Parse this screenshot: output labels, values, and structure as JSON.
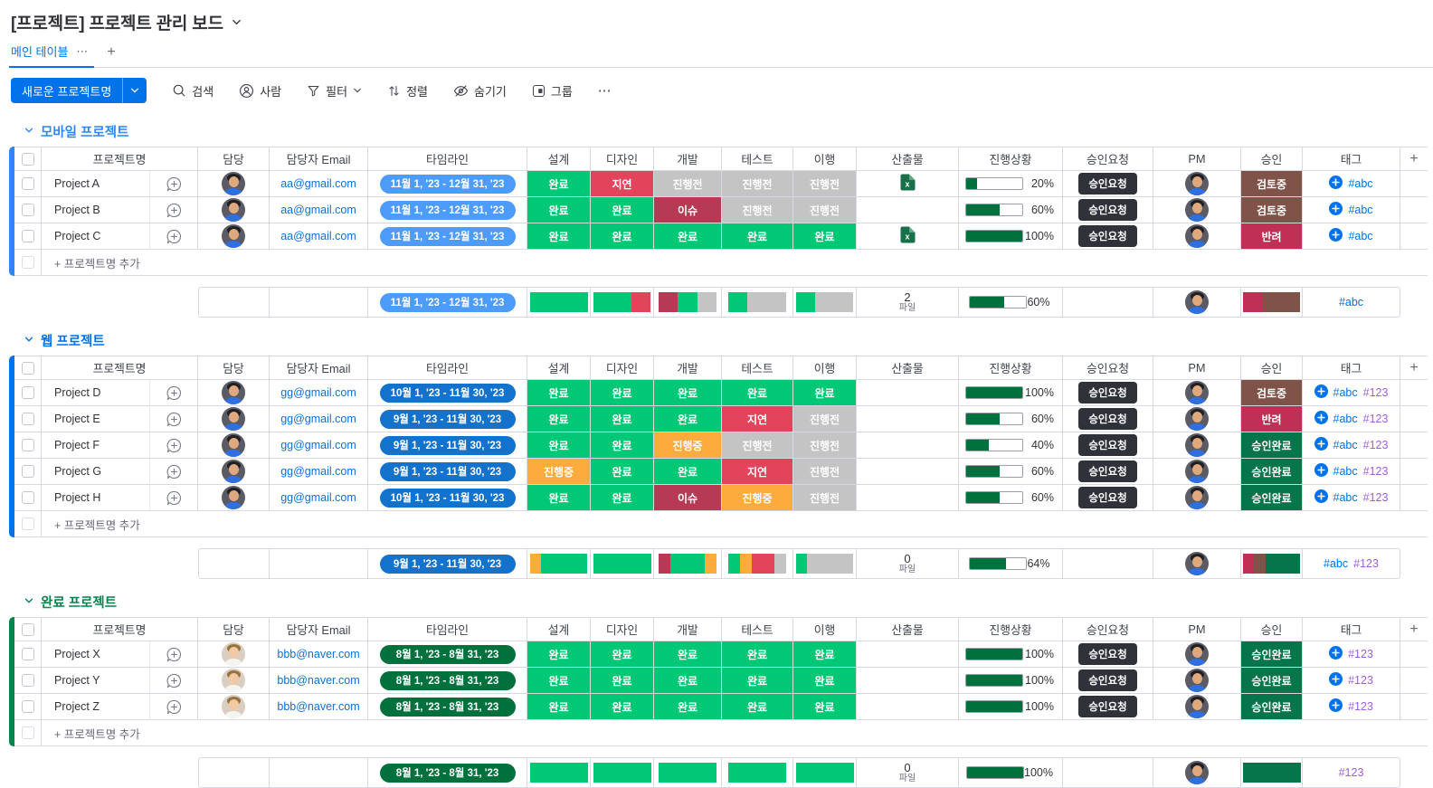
{
  "header": {
    "board_title": "[프로젝트] 프로젝트 관리 보드",
    "tab_label": "메인 테이블",
    "tab_more": "⋯",
    "add_view": "+"
  },
  "toolbar": {
    "new_item_label": "새로운 프로젝트명",
    "search_label": "검색",
    "person_label": "사람",
    "filter_label": "필터",
    "sort_label": "정렬",
    "hide_label": "숨기기",
    "group_label": "그룹",
    "more_label": "⋯"
  },
  "labels": {
    "add_row": "+ 프로젝트명 추가",
    "approval_request": "승인요청",
    "files_unit": "파일",
    "add_column": "+"
  },
  "columns": [
    "프로젝트명",
    "담당",
    "담당자 Email",
    "타임라인",
    "설계",
    "디자인",
    "개발",
    "테스트",
    "이행",
    "산출물",
    "진행상황",
    "승인요청",
    "PM",
    "승인",
    "태그"
  ],
  "status_colors": {
    "완료": "#00c875",
    "지연": "#e2445c",
    "진행전": "#c4c4c4",
    "이슈": "#b63a53",
    "진행중": "#fdab3d",
    "검토중": "#7f5347",
    "반려": "#c02f55",
    "승인완료": "#06764a"
  },
  "tag_colors": {
    "#abc": "#0073ea",
    "#123": "#a25ddc"
  },
  "progress_fill": "#00713c",
  "groups": [
    {
      "name": "모바일 프로젝트",
      "color": "#2f86f6",
      "timeline_color": "#4d9bfa",
      "rows": [
        {
          "name": "Project A",
          "avatar": "a",
          "email": "aa@gmail.com",
          "timeline": "11월 1, '23 - 12월 31, '23",
          "statuses": [
            "완료",
            "지연",
            "진행전",
            "진행전",
            "진행전"
          ],
          "file": true,
          "progress": 20,
          "approval": "검토중",
          "tags": [
            "#abc"
          ]
        },
        {
          "name": "Project B",
          "avatar": "a",
          "email": "aa@gmail.com",
          "timeline": "11월 1, '23 - 12월 31, '23",
          "statuses": [
            "완료",
            "완료",
            "이슈",
            "진행전",
            "진행전"
          ],
          "file": false,
          "progress": 60,
          "approval": "검토중",
          "tags": [
            "#abc"
          ]
        },
        {
          "name": "Project C",
          "avatar": "a",
          "email": "aa@gmail.com",
          "timeline": "11월 1, '23 - 12월 31, '23",
          "statuses": [
            "완료",
            "완료",
            "완료",
            "완료",
            "완료"
          ],
          "file": true,
          "progress": 100,
          "approval": "반려",
          "tags": [
            "#abc"
          ]
        }
      ],
      "summary": {
        "timeline": "11월 1, '23 - 12월 31, '23",
        "bars": [
          [
            [
              "완료",
              100
            ]
          ],
          [
            [
              "완료",
              67
            ],
            [
              "지연",
              33
            ]
          ],
          [
            [
              "이슈",
              33
            ],
            [
              "완료",
              34
            ],
            [
              "진행전",
              33
            ]
          ],
          [
            [
              "완료",
              33
            ],
            [
              "진행전",
              67
            ]
          ],
          [
            [
              "완료",
              33
            ],
            [
              "진행전",
              67
            ]
          ]
        ],
        "files": "2",
        "progress": 60,
        "approval_bar": [
          [
            "반려",
            33
          ],
          [
            "검토중",
            67
          ]
        ],
        "tags": [
          "#abc"
        ]
      }
    },
    {
      "name": "웹 프로젝트",
      "color": "#0073ea",
      "timeline_color": "#1272cc",
      "rows": [
        {
          "name": "Project D",
          "avatar": "a",
          "email": "gg@gmail.com",
          "timeline": "10월 1, '23 - 11월 30, '23",
          "statuses": [
            "완료",
            "완료",
            "완료",
            "완료",
            "완료"
          ],
          "file": false,
          "progress": 100,
          "approval": "검토중",
          "tags": [
            "#abc",
            "#123"
          ]
        },
        {
          "name": "Project E",
          "avatar": "a",
          "email": "gg@gmail.com",
          "timeline": "9월 1, '23 - 11월 30, '23",
          "statuses": [
            "완료",
            "완료",
            "완료",
            "지연",
            "진행전"
          ],
          "file": false,
          "progress": 60,
          "approval": "반려",
          "tags": [
            "#abc",
            "#123"
          ]
        },
        {
          "name": "Project F",
          "avatar": "a",
          "email": "gg@gmail.com",
          "timeline": "9월 1, '23 - 11월 30, '23",
          "statuses": [
            "완료",
            "완료",
            "진행중",
            "진행전",
            "진행전"
          ],
          "file": false,
          "progress": 40,
          "approval": "승인완료",
          "tags": [
            "#abc",
            "#123"
          ]
        },
        {
          "name": "Project G",
          "avatar": "a",
          "email": "gg@gmail.com",
          "timeline": "9월 1, '23 - 11월 30, '23",
          "statuses": [
            "진행중",
            "완료",
            "완료",
            "지연",
            "진행전"
          ],
          "file": false,
          "progress": 60,
          "approval": "승인완료",
          "tags": [
            "#abc",
            "#123"
          ]
        },
        {
          "name": "Project H",
          "avatar": "a",
          "email": "gg@gmail.com",
          "timeline": "10월 1, '23 - 11월 30, '23",
          "statuses": [
            "완료",
            "완료",
            "이슈",
            "진행중",
            "진행전"
          ],
          "file": false,
          "progress": 60,
          "approval": "승인완료",
          "tags": [
            "#abc",
            "#123"
          ]
        }
      ],
      "summary": {
        "timeline": "9월 1, '23 - 11월 30, '23",
        "bars": [
          [
            [
              "진행중",
              20
            ],
            [
              "완료",
              80
            ]
          ],
          [
            [
              "완료",
              100
            ]
          ],
          [
            [
              "이슈",
              20
            ],
            [
              "완료",
              60
            ],
            [
              "진행중",
              20
            ]
          ],
          [
            [
              "완료",
              20
            ],
            [
              "진행중",
              20
            ],
            [
              "지연",
              40
            ],
            [
              "진행전",
              20
            ]
          ],
          [
            [
              "완료",
              20
            ],
            [
              "진행전",
              80
            ]
          ]
        ],
        "files": "0",
        "progress": 64,
        "approval_bar": [
          [
            "반려",
            20
          ],
          [
            "검토중",
            20
          ],
          [
            "승인완료",
            60
          ]
        ],
        "tags": [
          "#abc",
          "#123"
        ]
      }
    },
    {
      "name": "완료 프로젝트",
      "color": "#00854d",
      "timeline_color": "#00713c",
      "rows": [
        {
          "name": "Project X",
          "avatar": "b",
          "email": "bbb@naver.com",
          "timeline": "8월 1, '23 - 8월 31, '23",
          "statuses": [
            "완료",
            "완료",
            "완료",
            "완료",
            "완료"
          ],
          "file": false,
          "progress": 100,
          "approval": "승인완료",
          "tags": [
            "#123"
          ]
        },
        {
          "name": "Project Y",
          "avatar": "b",
          "email": "bbb@naver.com",
          "timeline": "8월 1, '23 - 8월 31, '23",
          "statuses": [
            "완료",
            "완료",
            "완료",
            "완료",
            "완료"
          ],
          "file": false,
          "progress": 100,
          "approval": "승인완료",
          "tags": [
            "#123"
          ]
        },
        {
          "name": "Project Z",
          "avatar": "b",
          "email": "bbb@naver.com",
          "timeline": "8월 1, '23 - 8월 31, '23",
          "statuses": [
            "완료",
            "완료",
            "완료",
            "완료",
            "완료"
          ],
          "file": false,
          "progress": 100,
          "approval": "승인완료",
          "tags": [
            "#123"
          ]
        }
      ],
      "summary": {
        "timeline": "8월 1, '23 - 8월 31, '23",
        "bars": [
          [
            [
              "완료",
              100
            ]
          ],
          [
            [
              "완료",
              100
            ]
          ],
          [
            [
              "완료",
              100
            ]
          ],
          [
            [
              "완료",
              100
            ]
          ],
          [
            [
              "완료",
              100
            ]
          ]
        ],
        "files": "0",
        "progress": 100,
        "approval_bar": [
          [
            "승인완료",
            100
          ]
        ],
        "tags": [
          "#123"
        ]
      }
    }
  ]
}
